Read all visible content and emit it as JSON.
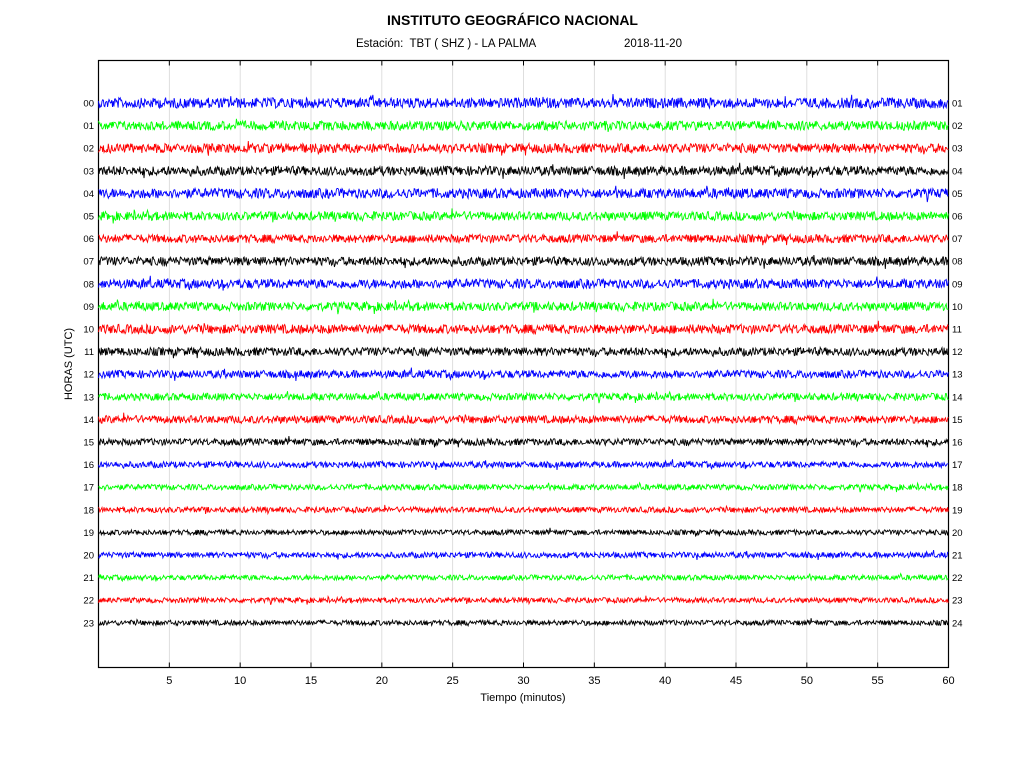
{
  "header": {
    "title": "INSTITUTO GEOGRÁFICO NACIONAL",
    "station_label": "Estación:  TBT ( SHZ ) - LA PALMA",
    "date": "2018-11-20"
  },
  "chart_data": {
    "type": "line",
    "title": "INSTITUTO GEOGRÁFICO NACIONAL",
    "subtitle": "Estación:  TBT ( SHZ ) - LA PALMA",
    "date": "2018-11-20",
    "xlabel": "Tiempo (minutos)",
    "ylabel": "HORAS (UTC)",
    "xlim": [
      0,
      60
    ],
    "x_ticks": [
      5,
      10,
      15,
      20,
      25,
      30,
      35,
      40,
      45,
      50,
      55,
      60
    ],
    "grid": "vertical",
    "rows_left": [
      "00",
      "01",
      "02",
      "03",
      "04",
      "05",
      "06",
      "07",
      "08",
      "09",
      "10",
      "11",
      "12",
      "13",
      "14",
      "15",
      "16",
      "17",
      "18",
      "19",
      "20",
      "21",
      "22",
      "23"
    ],
    "rows_right": [
      "01",
      "02",
      "03",
      "04",
      "05",
      "06",
      "07",
      "08",
      "09",
      "10",
      "11",
      "12",
      "13",
      "14",
      "15",
      "16",
      "17",
      "18",
      "19",
      "20",
      "21",
      "22",
      "23",
      "24"
    ],
    "trace_colors": [
      "#0000ff",
      "#00ff00",
      "#ff0000",
      "#000000"
    ],
    "trace_amplitude": [
      1.0,
      0.9,
      0.9,
      0.9,
      0.95,
      0.85,
      0.8,
      0.85,
      0.9,
      0.85,
      0.9,
      0.8,
      0.75,
      0.7,
      0.75,
      0.65,
      0.6,
      0.55,
      0.55,
      0.5,
      0.55,
      0.5,
      0.5,
      0.5
    ]
  }
}
